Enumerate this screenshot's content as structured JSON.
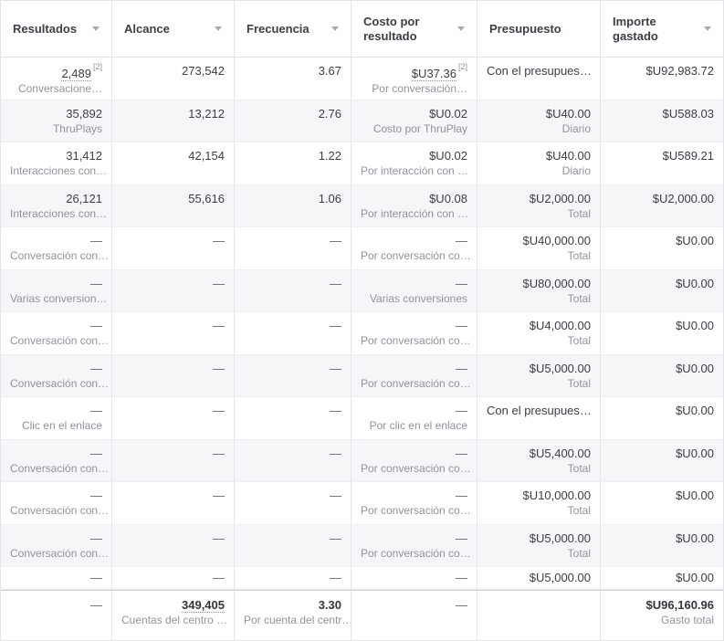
{
  "table": {
    "columns": [
      {
        "label": "Resultados",
        "sortable": true
      },
      {
        "label": "Alcance",
        "sortable": true
      },
      {
        "label": "Frecuencia",
        "sortable": true
      },
      {
        "label": "Costo por resultado",
        "sortable": true
      },
      {
        "label": "Presupuesto",
        "sortable": false
      },
      {
        "label": "Importe gastado",
        "sortable": true
      }
    ],
    "rows": [
      {
        "cells": [
          {
            "v": "2,489",
            "sup": "[2]",
            "u": true,
            "s": "Conversacione…"
          },
          {
            "v": "273,542"
          },
          {
            "v": "3.67"
          },
          {
            "v": "$U37.36",
            "sup": "[2]",
            "u": true,
            "s": "Por conversación…"
          },
          {
            "v": "Con el presupues…",
            "left": true
          },
          {
            "v": "$U92,983.72"
          }
        ]
      },
      {
        "cells": [
          {
            "v": "35,892",
            "s": "ThruPlays"
          },
          {
            "v": "13,212"
          },
          {
            "v": "2.76"
          },
          {
            "v": "$U0.02",
            "s": "Costo por ThruPlay"
          },
          {
            "v": "$U40.00",
            "s": "Diario"
          },
          {
            "v": "$U588.03"
          }
        ]
      },
      {
        "cells": [
          {
            "v": "31,412",
            "s": "Interacciones con…"
          },
          {
            "v": "42,154"
          },
          {
            "v": "1.22"
          },
          {
            "v": "$U0.02",
            "s": "Por interacción con …"
          },
          {
            "v": "$U40.00",
            "s": "Diario"
          },
          {
            "v": "$U589.21"
          }
        ]
      },
      {
        "cells": [
          {
            "v": "26,121",
            "s": "Interacciones con…"
          },
          {
            "v": "55,616"
          },
          {
            "v": "1.06"
          },
          {
            "v": "$U0.08",
            "s": "Por interacción con …"
          },
          {
            "v": "$U2,000.00",
            "s": "Total"
          },
          {
            "v": "$U2,000.00"
          }
        ]
      },
      {
        "cells": [
          {
            "v": "—",
            "s": "Conversación con…"
          },
          {
            "v": "—"
          },
          {
            "v": "—"
          },
          {
            "v": "—",
            "s": "Por conversación co…"
          },
          {
            "v": "$U40,000.00",
            "s": "Total"
          },
          {
            "v": "$U0.00"
          }
        ]
      },
      {
        "cells": [
          {
            "v": "—",
            "s": "Varias conversion…"
          },
          {
            "v": "—"
          },
          {
            "v": "—"
          },
          {
            "v": "—",
            "s": "Varias conversiones"
          },
          {
            "v": "$U80,000.00",
            "s": "Total"
          },
          {
            "v": "$U0.00"
          }
        ]
      },
      {
        "cells": [
          {
            "v": "—",
            "s": "Conversación con…"
          },
          {
            "v": "—"
          },
          {
            "v": "—"
          },
          {
            "v": "—",
            "s": "Por conversación co…"
          },
          {
            "v": "$U4,000.00",
            "s": "Total"
          },
          {
            "v": "$U0.00"
          }
        ]
      },
      {
        "cells": [
          {
            "v": "—",
            "s": "Conversación con…"
          },
          {
            "v": "—"
          },
          {
            "v": "—"
          },
          {
            "v": "—",
            "s": "Por conversación co…"
          },
          {
            "v": "$U5,000.00",
            "s": "Total"
          },
          {
            "v": "$U0.00"
          }
        ]
      },
      {
        "cells": [
          {
            "v": "—",
            "s": "Clic en el enlace"
          },
          {
            "v": "—"
          },
          {
            "v": "—"
          },
          {
            "v": "—",
            "s": "Por clic en el enlace"
          },
          {
            "v": "Con el presupues…",
            "left": true
          },
          {
            "v": "$U0.00"
          }
        ]
      },
      {
        "cells": [
          {
            "v": "—",
            "s": "Conversación con…"
          },
          {
            "v": "—"
          },
          {
            "v": "—"
          },
          {
            "v": "—",
            "s": "Por conversación co…"
          },
          {
            "v": "$U5,400.00",
            "s": "Total"
          },
          {
            "v": "$U0.00"
          }
        ]
      },
      {
        "cells": [
          {
            "v": "—",
            "s": "Conversación con…"
          },
          {
            "v": "—"
          },
          {
            "v": "—"
          },
          {
            "v": "—",
            "s": "Por conversación co…"
          },
          {
            "v": "$U10,000.00",
            "s": "Total"
          },
          {
            "v": "$U0.00"
          }
        ]
      },
      {
        "cells": [
          {
            "v": "—",
            "s": "Conversación con…"
          },
          {
            "v": "—"
          },
          {
            "v": "—"
          },
          {
            "v": "—",
            "s": "Por conversación co…"
          },
          {
            "v": "$U5,000.00",
            "s": "Total"
          },
          {
            "v": "$U0.00"
          }
        ]
      },
      {
        "partial": true,
        "cells": [
          {
            "v": "—"
          },
          {
            "v": "—"
          },
          {
            "v": "—"
          },
          {
            "v": "—"
          },
          {
            "v": "$U5,000.00"
          },
          {
            "v": "$U0.00"
          }
        ]
      }
    ],
    "footer": {
      "cells": [
        {
          "v": "—"
        },
        {
          "v": "349,405",
          "b": true,
          "u": true,
          "s": "Cuentas del centro …"
        },
        {
          "v": "3.30",
          "b": true,
          "s": "Por cuenta del centr…"
        },
        {
          "v": "—"
        },
        {
          "v": ""
        },
        {
          "v": "$U96,160.96",
          "b": true,
          "s": "Gasto total"
        }
      ]
    }
  },
  "colors": {
    "zebra_row": "#f5f6f7",
    "column_border": "#e4e6e9",
    "row_border": "#edeff2",
    "header_text": "#3b3f46",
    "value_text": "#3a3e45",
    "sublabel_text": "#90949c"
  }
}
